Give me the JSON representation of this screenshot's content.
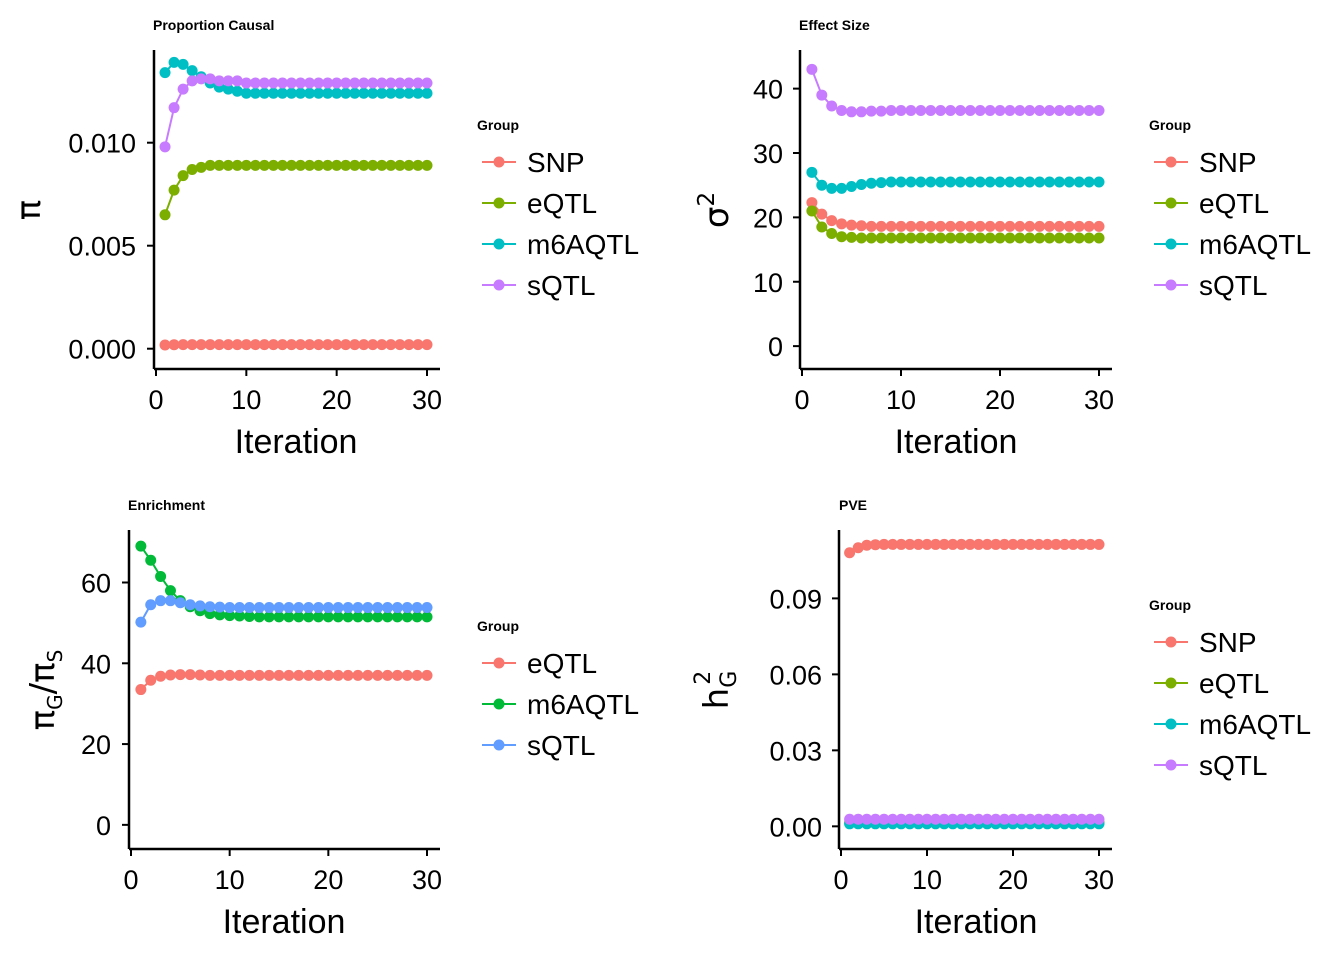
{
  "chart_data": [
    {
      "type": "line",
      "title": "Proportion Causal",
      "xlabel": "Iteration",
      "ylabel": "π",
      "xlim": [
        0,
        30
      ],
      "ylim": [
        -0.0005,
        0.0145
      ],
      "xticks": [
        0,
        10,
        20,
        30
      ],
      "xtick_labels": [
        "0",
        "10",
        "20",
        "30"
      ],
      "yticks": [
        0.0,
        0.005,
        0.01
      ],
      "ytick_labels": [
        "0.000",
        "0.005",
        "0.010"
      ],
      "legend_title": "Group",
      "legend_position": "right",
      "x": [
        1,
        2,
        3,
        4,
        5,
        6,
        7,
        8,
        9,
        10,
        11,
        12,
        13,
        14,
        15,
        16,
        17,
        18,
        19,
        20,
        21,
        22,
        23,
        24,
        25,
        26,
        27,
        28,
        29,
        30
      ],
      "series": [
        {
          "name": "SNP",
          "color": "#F8766D",
          "values": [
            0.00018,
            0.00019,
            0.0002,
            0.0002,
            0.0002,
            0.0002,
            0.0002,
            0.0002,
            0.0002,
            0.0002,
            0.0002,
            0.0002,
            0.0002,
            0.0002,
            0.0002,
            0.0002,
            0.0002,
            0.0002,
            0.0002,
            0.0002,
            0.0002,
            0.0002,
            0.0002,
            0.0002,
            0.0002,
            0.0002,
            0.0002,
            0.0002,
            0.0002,
            0.0002
          ]
        },
        {
          "name": "eQTL",
          "color": "#7CAE00",
          "values": [
            0.0065,
            0.0077,
            0.0084,
            0.0087,
            0.0088,
            0.0089,
            0.0089,
            0.0089,
            0.0089,
            0.0089,
            0.0089,
            0.0089,
            0.0089,
            0.0089,
            0.0089,
            0.0089,
            0.0089,
            0.0089,
            0.0089,
            0.0089,
            0.0089,
            0.0089,
            0.0089,
            0.0089,
            0.0089,
            0.0089,
            0.0089,
            0.0089,
            0.0089,
            0.0089
          ]
        },
        {
          "name": "m6AQTL",
          "color": "#00BFC4",
          "values": [
            0.0134,
            0.0139,
            0.0138,
            0.0135,
            0.0132,
            0.0129,
            0.0127,
            0.0126,
            0.0125,
            0.0124,
            0.0124,
            0.0124,
            0.0124,
            0.0124,
            0.0124,
            0.0124,
            0.0124,
            0.0124,
            0.0124,
            0.0124,
            0.0124,
            0.0124,
            0.0124,
            0.0124,
            0.0124,
            0.0124,
            0.0124,
            0.0124,
            0.0124,
            0.0124
          ]
        },
        {
          "name": "sQTL",
          "color": "#C77CFF",
          "values": [
            0.0098,
            0.0117,
            0.0126,
            0.013,
            0.0131,
            0.0131,
            0.013,
            0.013,
            0.013,
            0.0129,
            0.0129,
            0.0129,
            0.0129,
            0.0129,
            0.0129,
            0.0129,
            0.0129,
            0.0129,
            0.0129,
            0.0129,
            0.0129,
            0.0129,
            0.0129,
            0.0129,
            0.0129,
            0.0129,
            0.0129,
            0.0129,
            0.0129,
            0.0129
          ]
        }
      ]
    },
    {
      "type": "line",
      "title": "Effect Size",
      "xlabel": "Iteration",
      "ylabel": "σ",
      "ylabel_superscript": "2",
      "xlim": [
        0,
        30
      ],
      "ylim": [
        -2,
        46
      ],
      "xticks": [
        0,
        10,
        20,
        30
      ],
      "xtick_labels": [
        "0",
        "10",
        "20",
        "30"
      ],
      "yticks": [
        0,
        10,
        20,
        30,
        40
      ],
      "ytick_labels": [
        "0",
        "10",
        "20",
        "30",
        "40"
      ],
      "legend_title": "Group",
      "legend_position": "right",
      "x": [
        1,
        2,
        3,
        4,
        5,
        6,
        7,
        8,
        9,
        10,
        11,
        12,
        13,
        14,
        15,
        16,
        17,
        18,
        19,
        20,
        21,
        22,
        23,
        24,
        25,
        26,
        27,
        28,
        29,
        30
      ],
      "series": [
        {
          "name": "SNP",
          "color": "#F8766D",
          "values": [
            22.3,
            20.5,
            19.5,
            19.0,
            18.8,
            18.7,
            18.6,
            18.6,
            18.6,
            18.6,
            18.6,
            18.6,
            18.6,
            18.6,
            18.6,
            18.6,
            18.6,
            18.6,
            18.6,
            18.6,
            18.6,
            18.6,
            18.6,
            18.6,
            18.6,
            18.6,
            18.6,
            18.6,
            18.6,
            18.6
          ]
        },
        {
          "name": "eQTL",
          "color": "#7CAE00",
          "values": [
            21.0,
            18.5,
            17.5,
            17.0,
            16.9,
            16.8,
            16.8,
            16.8,
            16.8,
            16.8,
            16.8,
            16.8,
            16.8,
            16.8,
            16.8,
            16.8,
            16.8,
            16.8,
            16.8,
            16.8,
            16.8,
            16.8,
            16.8,
            16.8,
            16.8,
            16.8,
            16.8,
            16.8,
            16.8,
            16.8
          ]
        },
        {
          "name": "m6AQTL",
          "color": "#00BFC4",
          "values": [
            27.0,
            25.0,
            24.5,
            24.5,
            24.8,
            25.1,
            25.3,
            25.4,
            25.5,
            25.5,
            25.5,
            25.5,
            25.5,
            25.5,
            25.5,
            25.5,
            25.5,
            25.5,
            25.5,
            25.5,
            25.5,
            25.5,
            25.5,
            25.5,
            25.5,
            25.5,
            25.5,
            25.5,
            25.5,
            25.5
          ]
        },
        {
          "name": "sQTL",
          "color": "#C77CFF",
          "values": [
            43.0,
            39.0,
            37.3,
            36.6,
            36.4,
            36.4,
            36.5,
            36.5,
            36.6,
            36.6,
            36.6,
            36.6,
            36.6,
            36.6,
            36.6,
            36.6,
            36.6,
            36.6,
            36.6,
            36.6,
            36.6,
            36.6,
            36.6,
            36.6,
            36.6,
            36.6,
            36.6,
            36.6,
            36.6,
            36.6
          ]
        }
      ]
    },
    {
      "type": "line",
      "title": "Enrichment",
      "xlabel": "Iteration",
      "ylabel": "πG/πS",
      "xlim": [
        0,
        30
      ],
      "ylim": [
        -3.5,
        73
      ],
      "xticks": [
        0,
        10,
        20,
        30
      ],
      "xtick_labels": [
        "0",
        "10",
        "20",
        "30"
      ],
      "yticks": [
        0,
        20,
        40,
        60
      ],
      "ytick_labels": [
        "0",
        "20",
        "40",
        "60"
      ],
      "legend_title": "Group",
      "legend_position": "right",
      "x": [
        1,
        2,
        3,
        4,
        5,
        6,
        7,
        8,
        9,
        10,
        11,
        12,
        13,
        14,
        15,
        16,
        17,
        18,
        19,
        20,
        21,
        22,
        23,
        24,
        25,
        26,
        27,
        28,
        29,
        30
      ],
      "series": [
        {
          "name": "eQTL",
          "color": "#F8766D",
          "values": [
            33.5,
            35.8,
            36.8,
            37.1,
            37.2,
            37.2,
            37.1,
            37.0,
            37.0,
            37.0,
            37.0,
            37.0,
            37.0,
            37.0,
            37.0,
            37.0,
            37.0,
            37.0,
            37.0,
            37.0,
            37.0,
            37.0,
            37.0,
            37.0,
            37.0,
            37.0,
            37.0,
            37.0,
            37.0,
            37.0
          ]
        },
        {
          "name": "m6AQTL",
          "color": "#00BA38",
          "values": [
            69.0,
            65.5,
            61.5,
            58.0,
            55.5,
            54.0,
            53.0,
            52.3,
            52.0,
            51.8,
            51.7,
            51.6,
            51.5,
            51.5,
            51.5,
            51.5,
            51.5,
            51.5,
            51.5,
            51.5,
            51.5,
            51.5,
            51.5,
            51.5,
            51.5,
            51.5,
            51.5,
            51.5,
            51.5,
            51.5
          ]
        },
        {
          "name": "sQTL",
          "color": "#619CFF",
          "values": [
            50.2,
            54.5,
            55.5,
            55.5,
            55.0,
            54.5,
            54.2,
            54.0,
            53.9,
            53.8,
            53.8,
            53.8,
            53.8,
            53.8,
            53.8,
            53.8,
            53.8,
            53.8,
            53.8,
            53.8,
            53.8,
            53.8,
            53.8,
            53.8,
            53.8,
            53.8,
            53.8,
            53.8,
            53.8,
            53.8
          ]
        }
      ]
    },
    {
      "type": "line",
      "title": "PVE",
      "xlabel": "Iteration",
      "ylabel": "h",
      "ylabel_superscript": "2",
      "ylabel_subscript": "G",
      "xlim": [
        0,
        30
      ],
      "ylim": [
        -0.005,
        0.117
      ],
      "xticks": [
        0,
        10,
        20,
        30
      ],
      "xtick_labels": [
        "0",
        "10",
        "20",
        "30"
      ],
      "yticks": [
        0.0,
        0.03,
        0.06,
        0.09
      ],
      "ytick_labels": [
        "0.00",
        "0.03",
        "0.06",
        "0.09"
      ],
      "legend_title": "Group",
      "legend_position": "right",
      "x": [
        1,
        2,
        3,
        4,
        5,
        6,
        7,
        8,
        9,
        10,
        11,
        12,
        13,
        14,
        15,
        16,
        17,
        18,
        19,
        20,
        21,
        22,
        23,
        24,
        25,
        26,
        27,
        28,
        29,
        30
      ],
      "series": [
        {
          "name": "SNP",
          "color": "#F8766D",
          "values": [
            0.108,
            0.11,
            0.111,
            0.1112,
            0.1113,
            0.1113,
            0.1113,
            0.1113,
            0.1113,
            0.1113,
            0.1113,
            0.1113,
            0.1113,
            0.1113,
            0.1113,
            0.1113,
            0.1113,
            0.1113,
            0.1113,
            0.1113,
            0.1113,
            0.1113,
            0.1113,
            0.1113,
            0.1113,
            0.1113,
            0.1113,
            0.1113,
            0.1113,
            0.1113
          ]
        },
        {
          "name": "eQTL",
          "color": "#7CAE00",
          "values": [
            0.0015,
            0.0015,
            0.0015,
            0.0015,
            0.0015,
            0.0015,
            0.0015,
            0.0015,
            0.0015,
            0.0015,
            0.0015,
            0.0015,
            0.0015,
            0.0015,
            0.0015,
            0.0015,
            0.0015,
            0.0015,
            0.0015,
            0.0015,
            0.0015,
            0.0015,
            0.0015,
            0.0015,
            0.0015,
            0.0015,
            0.0015,
            0.0015,
            0.0015,
            0.0015
          ]
        },
        {
          "name": "m6AQTL",
          "color": "#00BFC4",
          "values": [
            0.001,
            0.001,
            0.001,
            0.001,
            0.001,
            0.001,
            0.001,
            0.001,
            0.001,
            0.001,
            0.001,
            0.001,
            0.001,
            0.001,
            0.001,
            0.001,
            0.001,
            0.001,
            0.001,
            0.001,
            0.001,
            0.001,
            0.001,
            0.001,
            0.001,
            0.001,
            0.001,
            0.001,
            0.001,
            0.001
          ]
        },
        {
          "name": "sQTL",
          "color": "#C77CFF",
          "values": [
            0.0028,
            0.0028,
            0.0028,
            0.0028,
            0.0028,
            0.0028,
            0.0028,
            0.0028,
            0.0028,
            0.0028,
            0.0028,
            0.0028,
            0.0028,
            0.0028,
            0.0028,
            0.0028,
            0.0028,
            0.0028,
            0.0028,
            0.0028,
            0.0028,
            0.0028,
            0.0028,
            0.0028,
            0.0028,
            0.0028,
            0.0028,
            0.0028,
            0.0028,
            0.0028
          ]
        }
      ]
    }
  ]
}
